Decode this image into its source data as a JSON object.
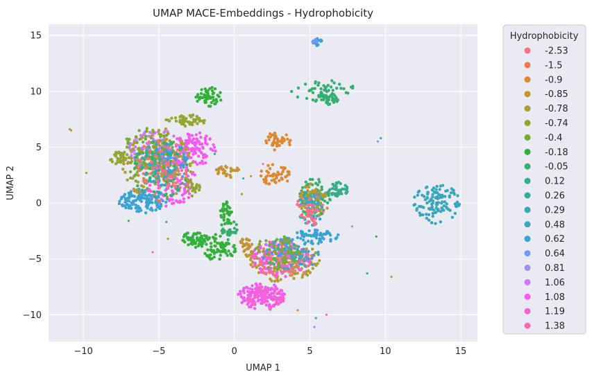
{
  "chart_data": {
    "type": "scatter",
    "title": "UMAP MACE-Embeddings - Hydrophobicity",
    "xlabel": "UMAP 1",
    "ylabel": "UMAP 2",
    "xlim": [
      -12.3,
      16.1
    ],
    "ylim": [
      -12.4,
      16.0
    ],
    "xticks": [
      -10,
      -5,
      0,
      5,
      10,
      15
    ],
    "yticks": [
      -10,
      -5,
      0,
      5,
      10,
      15
    ],
    "xtick_labels": [
      "−10",
      "−5",
      "0",
      "5",
      "10",
      "15"
    ],
    "ytick_labels": [
      "−10",
      "−5",
      "0",
      "5",
      "10",
      "15"
    ],
    "grid": true,
    "background": "#eaeaf2",
    "legend": {
      "title": "Hydrophobicity",
      "placement": "outside-right",
      "entries": [
        {
          "label": "-2.53",
          "color": "#f77189"
        },
        {
          "label": "-1.5",
          "color": "#f2764e"
        },
        {
          "label": "-0.9",
          "color": "#dc8932"
        },
        {
          "label": "-0.85",
          "color": "#c39532"
        },
        {
          "label": "-0.78",
          "color": "#ae9d31"
        },
        {
          "label": "-0.74",
          "color": "#97a431"
        },
        {
          "label": "-0.4",
          "color": "#77ab31"
        },
        {
          "label": "-0.18",
          "color": "#33b039"
        },
        {
          "label": "-0.05",
          "color": "#34ae71"
        },
        {
          "label": "0.12",
          "color": "#36ad8a"
        },
        {
          "label": "0.26",
          "color": "#37ab9b"
        },
        {
          "label": "0.29",
          "color": "#38a9a9"
        },
        {
          "label": "0.48",
          "color": "#39a7b8"
        },
        {
          "label": "0.62",
          "color": "#3ba3d0"
        },
        {
          "label": "0.64",
          "color": "#6e9bf4"
        },
        {
          "label": "0.81",
          "color": "#a48cf4"
        },
        {
          "label": "1.06",
          "color": "#cc7af4"
        },
        {
          "label": "1.08",
          "color": "#f45cf1"
        },
        {
          "label": "1.19",
          "color": "#f565cc"
        },
        {
          "label": "1.38",
          "color": "#f66bad"
        }
      ]
    },
    "clusters": [
      {
        "color": "#3ba3d0",
        "cx": -6.0,
        "cy": 0.2,
        "rx": 1.6,
        "ry": 1.0,
        "n": 140
      },
      {
        "color": "#cc7af4",
        "cx": -5.2,
        "cy": 4.8,
        "rx": 1.8,
        "ry": 1.6,
        "n": 140
      },
      {
        "color": "#f45cf1",
        "cx": -2.7,
        "cy": 4.8,
        "rx": 1.4,
        "ry": 1.4,
        "n": 110
      },
      {
        "color": "#f45cf1",
        "cx": -4.2,
        "cy": 2.0,
        "rx": 1.5,
        "ry": 2.2,
        "n": 110
      },
      {
        "color": "#ae9d31",
        "cx": -5.0,
        "cy": 3.5,
        "rx": 2.2,
        "ry": 3.0,
        "n": 160
      },
      {
        "color": "#77ab31",
        "cx": -5.6,
        "cy": 4.0,
        "rx": 1.8,
        "ry": 2.5,
        "n": 120
      },
      {
        "color": "#34ae71",
        "cx": -4.8,
        "cy": 3.0,
        "rx": 1.8,
        "ry": 2.5,
        "n": 100
      },
      {
        "color": "#3ba3d0",
        "cx": -4.6,
        "cy": 3.5,
        "rx": 1.5,
        "ry": 2.0,
        "n": 80
      },
      {
        "color": "#f77189",
        "cx": -4.8,
        "cy": 3.5,
        "rx": 1.6,
        "ry": 2.2,
        "n": 70
      },
      {
        "color": "#97a431",
        "cx": -3.2,
        "cy": 7.4,
        "rx": 1.2,
        "ry": 0.5,
        "n": 50
      },
      {
        "color": "#97a431",
        "cx": -7.6,
        "cy": 4.0,
        "rx": 0.6,
        "ry": 0.6,
        "n": 30
      },
      {
        "color": "#97a431",
        "cx": -2.8,
        "cy": 1.5,
        "rx": 0.5,
        "ry": 0.8,
        "n": 25
      },
      {
        "color": "#33b039",
        "cx": -1.7,
        "cy": 9.5,
        "rx": 0.8,
        "ry": 0.8,
        "n": 50
      },
      {
        "color": "#dc8932",
        "cx": 2.8,
        "cy": 5.5,
        "rx": 0.9,
        "ry": 0.8,
        "n": 50
      },
      {
        "color": "#dc8932",
        "cx": 2.7,
        "cy": 2.5,
        "rx": 0.9,
        "ry": 0.9,
        "n": 50
      },
      {
        "color": "#c39532",
        "cx": -0.4,
        "cy": 2.8,
        "rx": 0.8,
        "ry": 0.5,
        "n": 30
      },
      {
        "color": "#34ae71",
        "cx": 6.0,
        "cy": 10.0,
        "rx": 2.0,
        "ry": 0.9,
        "n": 50
      },
      {
        "color": "#34ae71",
        "cx": 6.1,
        "cy": 9.3,
        "rx": 0.7,
        "ry": 0.6,
        "n": 40
      },
      {
        "color": "#39a7b8",
        "cx": 13.4,
        "cy": 0.0,
        "rx": 1.4,
        "ry": 1.7,
        "n": 120
      },
      {
        "color": "#33b039",
        "cx": -0.5,
        "cy": -1.0,
        "rx": 0.4,
        "ry": 1.5,
        "n": 40
      },
      {
        "color": "#33b039",
        "cx": -2.5,
        "cy": -3.2,
        "rx": 0.9,
        "ry": 0.7,
        "n": 60
      },
      {
        "color": "#33b039",
        "cx": -1.0,
        "cy": -4.0,
        "rx": 1.1,
        "ry": 1.1,
        "n": 70
      },
      {
        "color": "#34ae71",
        "cx": -0.3,
        "cy": -2.5,
        "rx": 0.5,
        "ry": 1.0,
        "n": 25
      },
      {
        "color": "#c39532",
        "cx": 0.8,
        "cy": -4.0,
        "rx": 0.5,
        "ry": 0.9,
        "n": 30
      },
      {
        "color": "#f45cf1",
        "cx": 1.8,
        "cy": -8.3,
        "rx": 1.4,
        "ry": 1.1,
        "n": 150
      },
      {
        "color": "#f565cc",
        "cx": 2.0,
        "cy": -8.5,
        "rx": 1.2,
        "ry": 1.0,
        "n": 60
      },
      {
        "color": "#3ba3d0",
        "cx": 5.3,
        "cy": -3.0,
        "rx": 1.5,
        "ry": 0.6,
        "n": 60
      },
      {
        "color": "#ae9d31",
        "cx": 3.2,
        "cy": -5.2,
        "rx": 2.2,
        "ry": 1.7,
        "n": 140
      },
      {
        "color": "#f77189",
        "cx": 3.2,
        "cy": -5.0,
        "rx": 2.0,
        "ry": 1.6,
        "n": 120
      },
      {
        "color": "#f45cf1",
        "cx": 3.0,
        "cy": -5.0,
        "rx": 1.8,
        "ry": 1.5,
        "n": 90
      },
      {
        "color": "#3ba3d0",
        "cx": 3.8,
        "cy": -4.5,
        "rx": 1.8,
        "ry": 1.4,
        "n": 80
      },
      {
        "color": "#77ab31",
        "cx": 2.8,
        "cy": -4.5,
        "rx": 1.6,
        "ry": 1.4,
        "n": 60
      },
      {
        "color": "#34ae71",
        "cx": 5.3,
        "cy": 0.5,
        "rx": 1.0,
        "ry": 1.7,
        "n": 90
      },
      {
        "color": "#ae9d31",
        "cx": 5.2,
        "cy": 0.0,
        "rx": 0.9,
        "ry": 1.8,
        "n": 70
      },
      {
        "color": "#3ba3d0",
        "cx": 5.1,
        "cy": -0.5,
        "rx": 0.8,
        "ry": 1.5,
        "n": 50
      },
      {
        "color": "#f77189",
        "cx": 5.0,
        "cy": -0.5,
        "rx": 0.8,
        "ry": 1.5,
        "n": 40
      },
      {
        "color": "#36ad8a",
        "cx": 6.9,
        "cy": 1.2,
        "rx": 0.6,
        "ry": 0.6,
        "n": 40
      },
      {
        "color": "#3ba3d0",
        "cx": 5.5,
        "cy": 14.4,
        "rx": 0.3,
        "ry": 0.3,
        "n": 15
      },
      {
        "color": "#6e9bf4",
        "cx": 5.3,
        "cy": 14.5,
        "rx": 0.2,
        "ry": 0.2,
        "n": 10
      }
    ],
    "outlier_points": [
      {
        "x": -10.8,
        "y": 6.5,
        "color": "#c39532"
      },
      {
        "x": -10.9,
        "y": 6.6,
        "color": "#c39532"
      },
      {
        "x": -9.8,
        "y": 2.7,
        "color": "#ae9d31"
      },
      {
        "x": -7.0,
        "y": -1.6,
        "color": "#33b039"
      },
      {
        "x": -5.4,
        "y": -4.4,
        "color": "#f77189"
      },
      {
        "x": -4.5,
        "y": -1.7,
        "color": "#3ba3d0"
      },
      {
        "x": -4.4,
        "y": -3.2,
        "color": "#97a431"
      },
      {
        "x": -1.3,
        "y": 4.4,
        "color": "#34ae71"
      },
      {
        "x": 0.6,
        "y": 2.2,
        "color": "#3ba3d0"
      },
      {
        "x": 0.5,
        "y": 0.8,
        "color": "#97a431"
      },
      {
        "x": 1.9,
        "y": 3.5,
        "color": "#f77189"
      },
      {
        "x": 7.8,
        "y": -2.1,
        "color": "#cc7af4"
      },
      {
        "x": 8.8,
        "y": -6.3,
        "color": "#34ae71"
      },
      {
        "x": 9.5,
        "y": 5.5,
        "color": "#6e9bf4"
      },
      {
        "x": 9.7,
        "y": 5.8,
        "color": "#34ae71"
      },
      {
        "x": 9.4,
        "y": -3.0,
        "color": "#33b039"
      },
      {
        "x": 10.4,
        "y": -6.6,
        "color": "#dc8932"
      },
      {
        "x": 4.2,
        "y": -9.6,
        "color": "#dc8932"
      },
      {
        "x": 5.3,
        "y": -11.1,
        "color": "#cc7af4"
      },
      {
        "x": 5.4,
        "y": -10.3,
        "color": "#3ba3d0"
      },
      {
        "x": 6.1,
        "y": -10.0,
        "color": "#f45cf1"
      },
      {
        "x": 1.1,
        "y": 2.4,
        "color": "#dc8932"
      }
    ]
  }
}
